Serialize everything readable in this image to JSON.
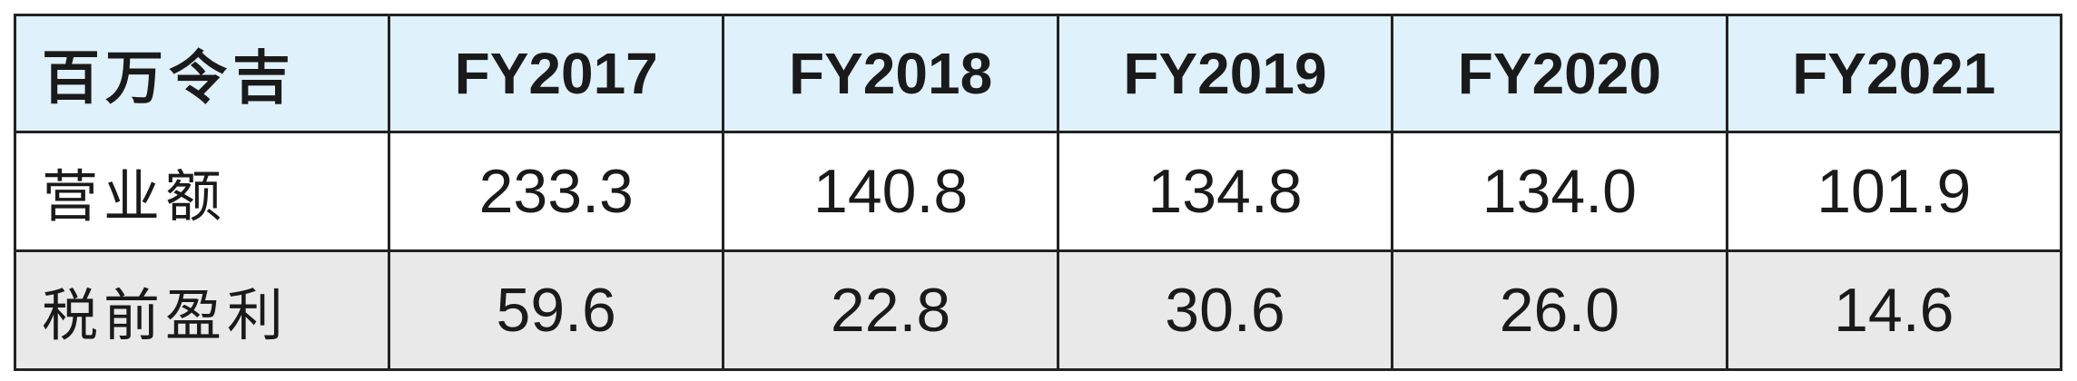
{
  "table": {
    "header": [
      "百万令吉",
      "FY2017",
      "FY2018",
      "FY2019",
      "FY2020",
      "FY2021"
    ],
    "rows": [
      [
        "营业额",
        "233.3",
        "140.8",
        "134.8",
        "134.0",
        "101.9"
      ],
      [
        "税前盈利",
        "59.6",
        "22.8",
        "30.6",
        "26.0",
        "14.6"
      ]
    ]
  }
}
